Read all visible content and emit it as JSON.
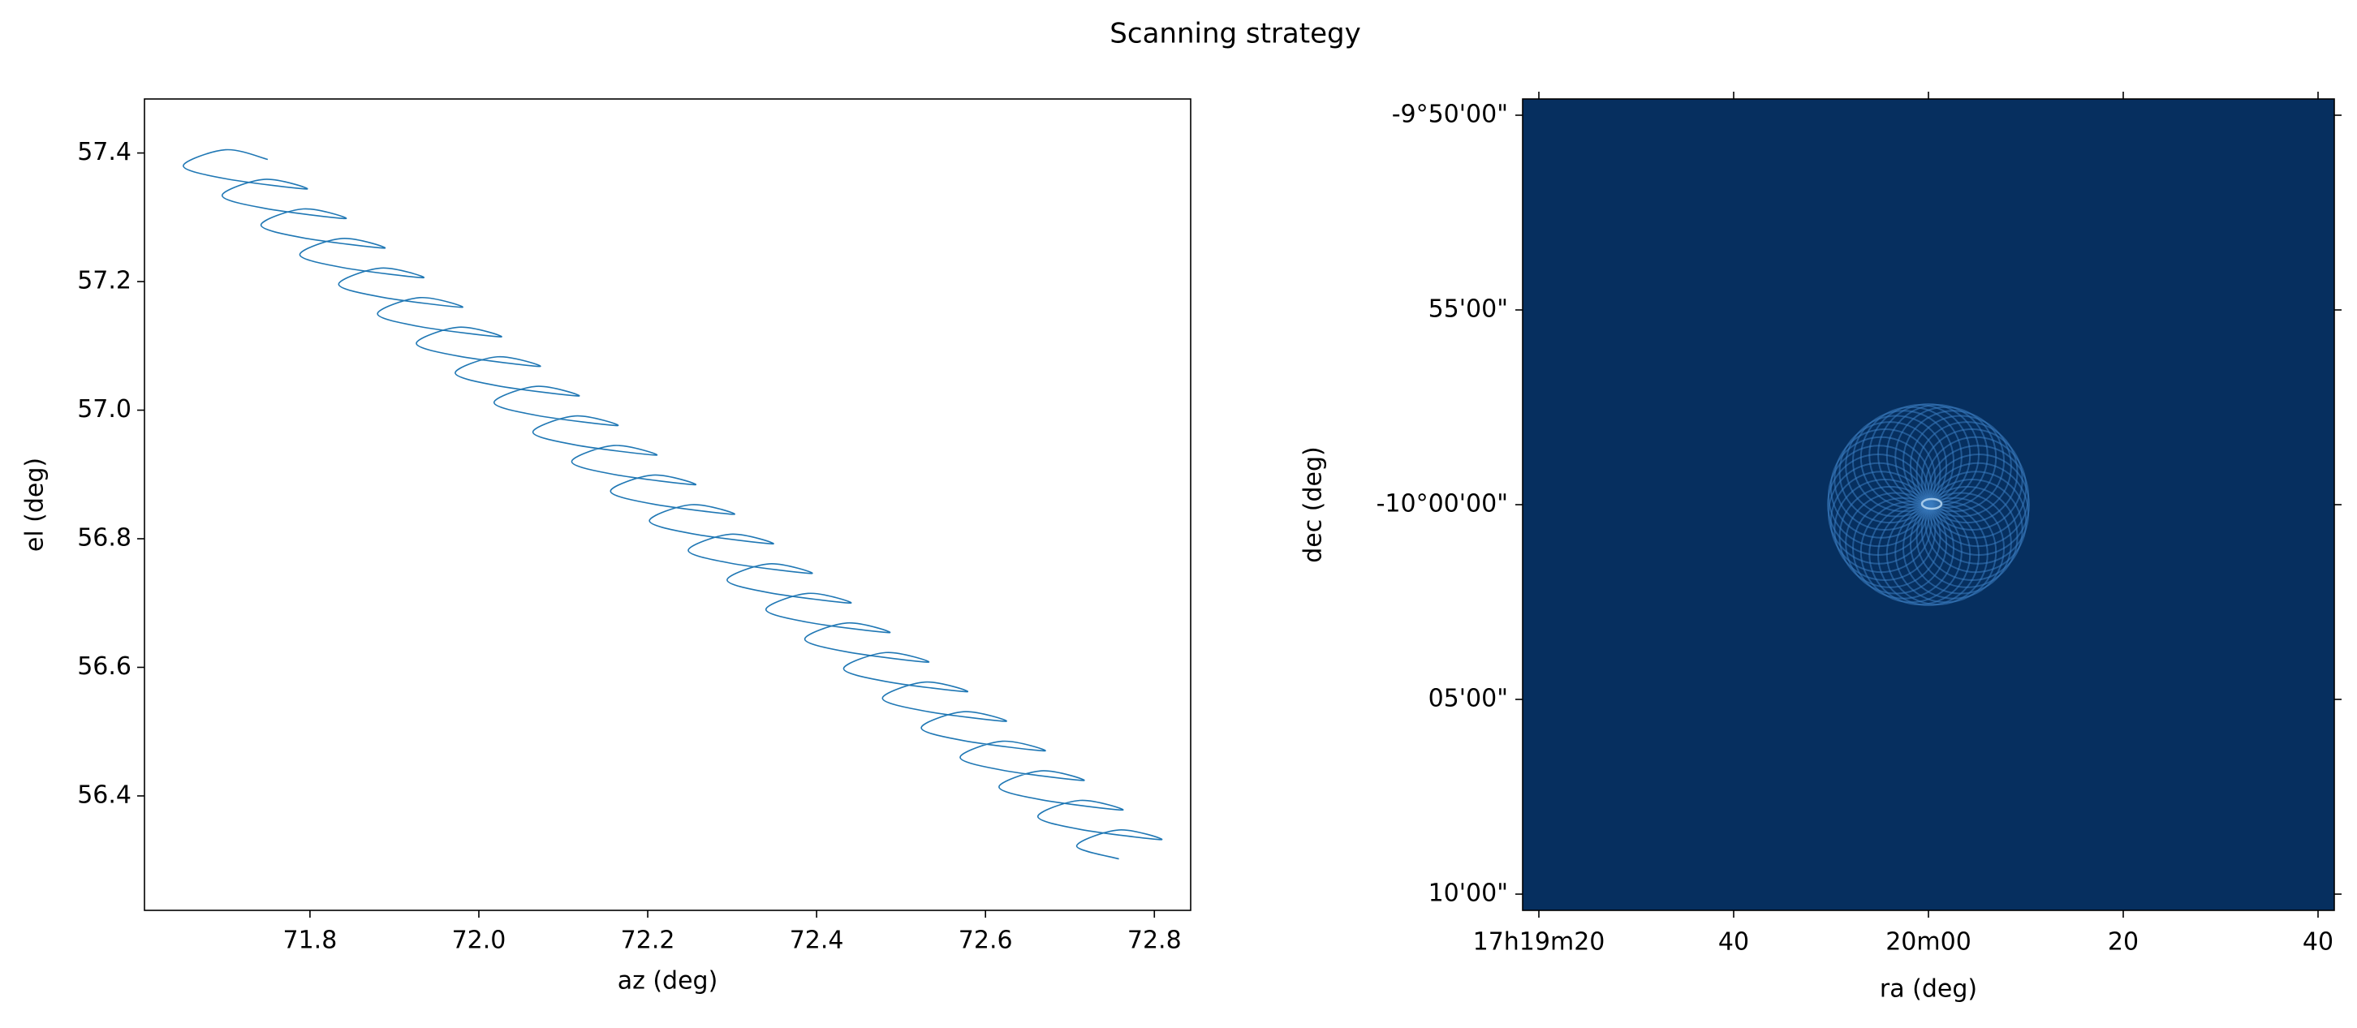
{
  "title": "Scanning strategy",
  "chart_data": [
    {
      "type": "line",
      "xlabel": "az (deg)",
      "ylabel": "el (deg)",
      "xlim": [
        71.604,
        72.843
      ],
      "ylim": [
        56.222,
        57.484
      ],
      "xticks": [
        71.8,
        {
          "value": 72,
          "label": "72.0"
        },
        72.2,
        72.4,
        72.6,
        72.8
      ],
      "yticks": [
        56.4,
        56.6,
        56.8,
        {
          "value": 57,
          "label": "57.0"
        },
        57.2,
        57.4
      ],
      "series": [
        {
          "color": "#1f77b4",
          "x": [
            71.75,
            71.7,
            71.65,
            71.7,
            71.796,
            71.746,
            71.696,
            71.746,
            71.842,
            71.792,
            71.742,
            71.792,
            71.888,
            71.838,
            71.788,
            71.838,
            71.934,
            71.884,
            71.834,
            71.884,
            71.98,
            71.93,
            71.88,
            71.93,
            72.026,
            71.976,
            71.926,
            71.976,
            72.072,
            72.022,
            71.972,
            72.022,
            72.118,
            72.068,
            72.018,
            72.068,
            72.164,
            72.114,
            72.064,
            72.114,
            72.21,
            72.16,
            72.11,
            72.16,
            72.256,
            72.206,
            72.156,
            72.206,
            72.302,
            72.252,
            72.202,
            72.252,
            72.348,
            72.298,
            72.248,
            72.298,
            72.394,
            72.344,
            72.294,
            72.344,
            72.44,
            72.39,
            72.34,
            72.39,
            72.486,
            72.436,
            72.386,
            72.436,
            72.532,
            72.482,
            72.432,
            72.482,
            72.578,
            72.528,
            72.478,
            72.528,
            72.624,
            72.574,
            72.524,
            72.574,
            72.67,
            72.62,
            72.57,
            72.62,
            72.716,
            72.666,
            72.616,
            72.666,
            72.762,
            72.712,
            72.662,
            72.712,
            72.808,
            72.758,
            72.708,
            72.758
          ],
          "values": [
            57.39,
            57.405,
            57.38,
            57.36,
            57.344,
            57.359,
            57.334,
            57.314,
            57.298,
            57.313,
            57.288,
            57.268,
            57.252,
            57.267,
            57.242,
            57.222,
            57.206,
            57.221,
            57.196,
            57.176,
            57.16,
            57.175,
            57.15,
            57.13,
            57.114,
            57.129,
            57.104,
            57.084,
            57.068,
            57.083,
            57.058,
            57.038,
            57.022,
            57.037,
            57.012,
            56.992,
            56.976,
            56.991,
            56.966,
            56.946,
            56.93,
            56.945,
            56.92,
            56.9,
            56.884,
            56.899,
            56.874,
            56.854,
            56.838,
            56.853,
            56.828,
            56.808,
            56.792,
            56.807,
            56.782,
            56.762,
            56.746,
            56.761,
            56.736,
            56.716,
            56.7,
            56.715,
            56.69,
            56.67,
            56.654,
            56.669,
            56.644,
            56.624,
            56.608,
            56.623,
            56.598,
            56.578,
            56.562,
            56.577,
            56.552,
            56.532,
            56.516,
            56.531,
            56.506,
            56.486,
            56.47,
            56.485,
            56.46,
            56.44,
            56.424,
            56.439,
            56.414,
            56.394,
            56.378,
            56.393,
            56.368,
            56.348,
            56.332,
            56.347,
            56.322,
            56.302
          ]
        }
      ]
    },
    {
      "type": "image",
      "xlabel": "ra (deg)",
      "ylabel": "dec (deg)",
      "xticks": [
        "17h19m20",
        "40",
        "20m00",
        "20",
        "40"
      ],
      "yticks": [
        "-9°50'00\"",
        "55'00\"",
        "-10°00'00\"",
        "05'00\"",
        "10'00\""
      ],
      "background_color": "#062f5f",
      "pattern_color": "#3a7cbf"
    }
  ]
}
